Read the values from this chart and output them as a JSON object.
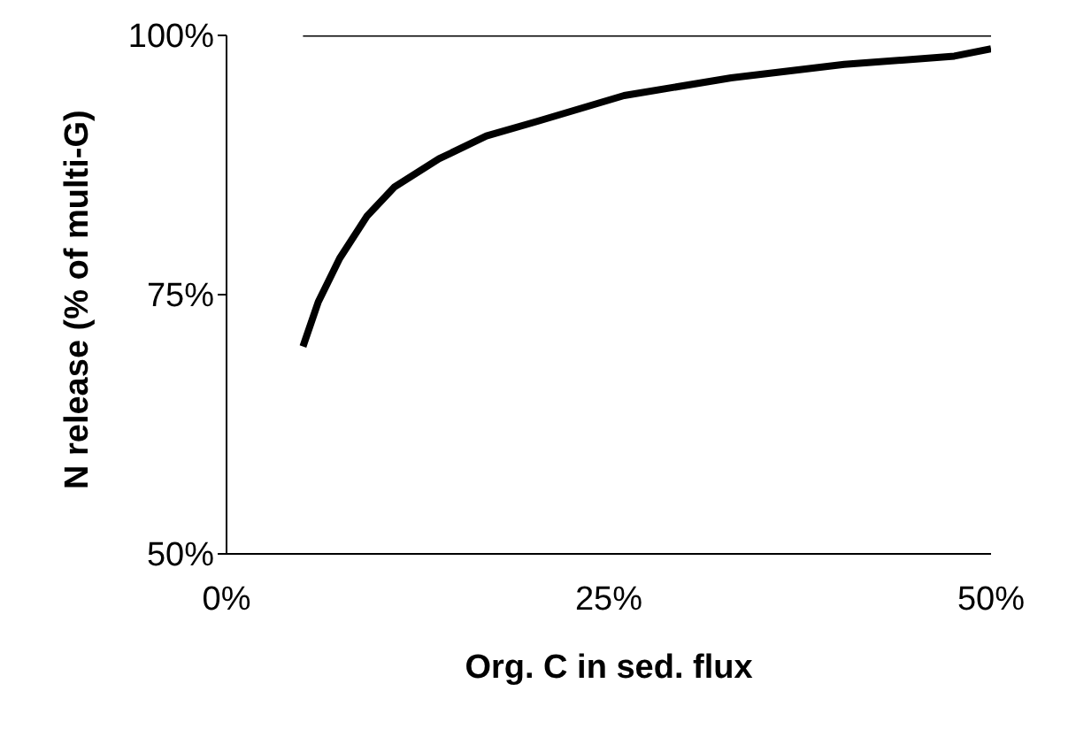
{
  "chart_data": {
    "type": "line",
    "xlabel": "Org. C in sed. flux",
    "ylabel": "N release (% of multi-G)",
    "series": [
      {
        "color": "#000000",
        "x": [
          5,
          6,
          7.4,
          9.2,
          11,
          13.9,
          17,
          20.3,
          26,
          33,
          40.4,
          47.6,
          50
        ],
        "values": [
          70,
          74.3,
          78.5,
          82.6,
          85.4,
          88.1,
          90.3,
          91.7,
          94.2,
          95.9,
          97.2,
          98,
          98.7
        ]
      },
      {
        "color": "#000000",
        "x": [
          5,
          50
        ],
        "values": [
          100,
          100
        ]
      }
    ],
    "xlim": [
      0,
      50
    ],
    "xticks": [
      {
        "value": 0,
        "label": "0%"
      },
      {
        "value": 25,
        "label": "25%"
      },
      {
        "value": 50,
        "label": "50%"
      }
    ],
    "ylim": [
      50,
      100
    ],
    "yticks": [
      {
        "value": 50,
        "label": "50%"
      },
      {
        "value": 75,
        "label": "75%"
      },
      {
        "value": 100,
        "label": "100%"
      }
    ],
    "grid": false,
    "legend": false,
    "marker": "none",
    "line_style": "solid"
  }
}
